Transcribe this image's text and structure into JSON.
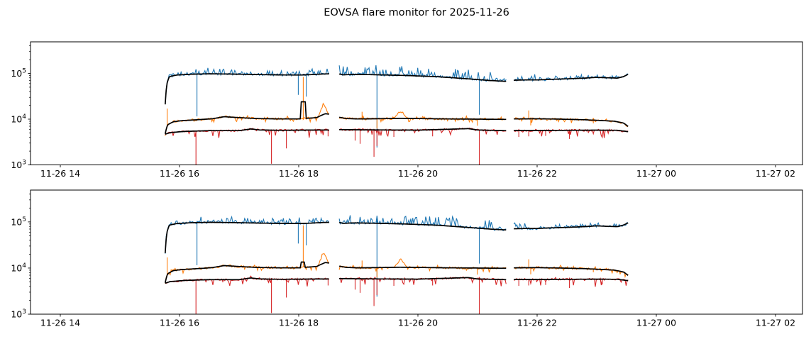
{
  "title": "EOVSA flare monitor for 2025-11-26",
  "colors": {
    "blue": "#1f77b4",
    "orange": "#ff7f0e",
    "red": "#d62728",
    "median": "#000000",
    "axis": "#000000",
    "background": "#ffffff"
  },
  "chart_data": {
    "type": "line",
    "title": "EOVSA flare monitor for 2025-11-26",
    "grid": false,
    "legend": "none",
    "x_axis": {
      "range_hours": [
        13.5,
        26.45
      ],
      "tick_hours": [
        14,
        16,
        18,
        20,
        22,
        24,
        26
      ],
      "tick_labels": [
        "11-26 14",
        "11-26 16",
        "11-26 18",
        "11-26 20",
        "11-26 22",
        "11-27 00",
        "11-27 02"
      ]
    },
    "y_axis": {
      "scale": "log",
      "range": [
        1000,
        490000
      ],
      "log_range": [
        3,
        5.69
      ],
      "tick_values": [
        1000,
        10000,
        100000
      ],
      "tick_labels": [
        "10^3",
        "10^4",
        "10^5"
      ]
    },
    "time_coverage": {
      "start_hour": 15.76,
      "end_hour": 23.54,
      "gaps_hours": [
        [
          18.51,
          18.68
        ],
        [
          21.48,
          21.61
        ]
      ]
    },
    "panels": [
      {
        "name": "top",
        "seed": 20251126,
        "orange_median_bump": [
          18.04,
          18.11,
          24000
        ]
      },
      {
        "name": "bottom",
        "seed": 90210,
        "orange_median_bump": [
          18.03,
          18.1,
          13500
        ]
      }
    ],
    "series": {
      "blue": {
        "color_key": "blue",
        "baseline": [
          [
            15.76,
            21000
          ],
          [
            15.79,
            60000
          ],
          [
            15.83,
            85000
          ],
          [
            15.95,
            92000
          ],
          [
            16.2,
            96000
          ],
          [
            16.5,
            98000
          ],
          [
            16.8,
            97000
          ],
          [
            17.2,
            95000
          ],
          [
            17.6,
            93000
          ],
          [
            18.0,
            92000
          ],
          [
            18.2,
            94000
          ],
          [
            18.4,
            97000
          ],
          [
            18.51,
            98000
          ],
          [
            18.68,
            97000
          ],
          [
            18.75,
            93000
          ],
          [
            18.9,
            95000
          ],
          [
            19.2,
            94000
          ],
          [
            19.5,
            92000
          ],
          [
            19.8,
            90000
          ],
          [
            20.0,
            88000
          ],
          [
            20.3,
            85000
          ],
          [
            20.6,
            80000
          ],
          [
            20.9,
            75000
          ],
          [
            21.2,
            70000
          ],
          [
            21.48,
            67000
          ],
          [
            21.61,
            71000
          ],
          [
            21.8,
            72000
          ],
          [
            22.0,
            72000
          ],
          [
            22.2,
            74000
          ],
          [
            22.5,
            76000
          ],
          [
            22.8,
            79000
          ],
          [
            23.0,
            82000
          ],
          [
            23.2,
            80000
          ],
          [
            23.35,
            79000
          ],
          [
            23.45,
            85000
          ],
          [
            23.54,
            97000
          ]
        ],
        "noise": {
          "jitter": 0.055,
          "spike_prob": 0.55,
          "spike_amp_default": 0.18,
          "spike_windows": [
            [
              16.2,
              18.51,
              0.3
            ],
            [
              18.68,
              21.25,
              0.55
            ],
            [
              21.61,
              22.1,
              0.33
            ],
            [
              22.1,
              23.54,
              0.14
            ]
          ]
        },
        "spikes": [
          [
            16.3,
            11500
          ],
          [
            18.0,
            34000
          ],
          [
            18.13,
            31000
          ],
          [
            19.31,
            2400
          ],
          [
            21.03,
            12500
          ]
        ]
      },
      "orange": {
        "color_key": "orange",
        "baseline": [
          [
            15.76,
            4800
          ],
          [
            15.8,
            7500
          ],
          [
            15.9,
            8800
          ],
          [
            16.05,
            9300
          ],
          [
            16.3,
            9700
          ],
          [
            16.55,
            10200
          ],
          [
            16.75,
            11300
          ],
          [
            17.0,
            10800
          ],
          [
            17.3,
            10300
          ],
          [
            17.7,
            10100
          ],
          [
            18.0,
            10100
          ],
          [
            18.3,
            10800
          ],
          [
            18.45,
            13200
          ],
          [
            18.51,
            12800
          ],
          [
            18.68,
            11000
          ],
          [
            18.8,
            10300
          ],
          [
            19.0,
            10100
          ],
          [
            19.3,
            10200
          ],
          [
            19.7,
            10400
          ],
          [
            20.0,
            10300
          ],
          [
            20.5,
            10100
          ],
          [
            21.0,
            10000
          ],
          [
            21.48,
            9900
          ],
          [
            21.61,
            10100
          ],
          [
            22.0,
            10200
          ],
          [
            22.4,
            10000
          ],
          [
            22.8,
            9700
          ],
          [
            23.1,
            9300
          ],
          [
            23.3,
            9000
          ],
          [
            23.45,
            8200
          ],
          [
            23.54,
            6700
          ]
        ],
        "noise": {
          "jitter": 0.05,
          "spike_prob": 0.12,
          "spike_amp_default": 0.13,
          "down_prob": 0.1,
          "down_amp": 0.18
        },
        "bumps": [
          [
            18.33,
            18.5,
            23000
          ],
          [
            19.6,
            19.82,
            16000
          ]
        ],
        "spikes": [
          [
            15.79,
            17000
          ],
          [
            18.07,
            84000
          ],
          [
            19.06,
            14500
          ],
          [
            19.31,
            6200
          ],
          [
            21.0,
            7200
          ],
          [
            21.86,
            15500
          ],
          [
            21.9,
            7300
          ],
          [
            22.95,
            8100
          ]
        ]
      },
      "red": {
        "color_key": "red",
        "baseline": [
          [
            15.76,
            4700
          ],
          [
            15.85,
            5100
          ],
          [
            16.1,
            5400
          ],
          [
            16.5,
            5600
          ],
          [
            17.0,
            5600
          ],
          [
            17.2,
            6100
          ],
          [
            17.35,
            5800
          ],
          [
            17.7,
            5700
          ],
          [
            18.0,
            5750
          ],
          [
            18.51,
            5800
          ],
          [
            18.68,
            5900
          ],
          [
            19.0,
            5850
          ],
          [
            19.5,
            5800
          ],
          [
            20.0,
            5750
          ],
          [
            20.85,
            6200
          ],
          [
            21.0,
            5800
          ],
          [
            21.48,
            5600
          ],
          [
            21.61,
            5650
          ],
          [
            22.0,
            5650
          ],
          [
            22.5,
            5700
          ],
          [
            23.0,
            5750
          ],
          [
            23.35,
            5700
          ],
          [
            23.54,
            5300
          ]
        ],
        "noise": {
          "jitter": 0.045,
          "spike_prob": 0.05,
          "spike_amp_default": 0.07,
          "down_prob": 0.12,
          "down_amp": 0.3
        },
        "spikes": [
          [
            16.27,
            620
          ],
          [
            17.55,
            1060
          ],
          [
            17.8,
            2300
          ],
          [
            18.49,
            4200
          ],
          [
            18.95,
            3400
          ],
          [
            19.03,
            2900
          ],
          [
            19.26,
            1500
          ],
          [
            19.31,
            2600
          ],
          [
            19.6,
            4100
          ],
          [
            20.25,
            4200
          ],
          [
            21.03,
            600
          ],
          [
            21.7,
            4100
          ],
          [
            21.86,
            4200
          ],
          [
            22.15,
            4300
          ],
          [
            22.55,
            3700
          ],
          [
            23.1,
            4400
          ]
        ]
      }
    }
  }
}
